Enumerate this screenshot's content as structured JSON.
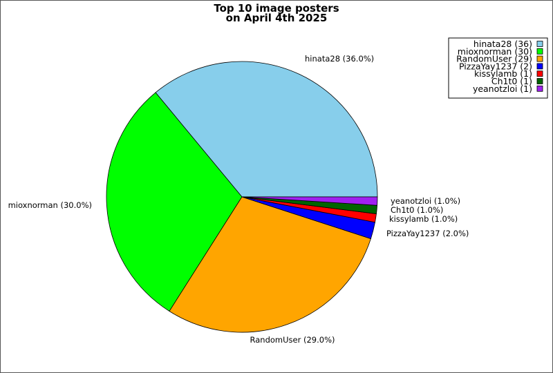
{
  "chart_data": {
    "type": "pie",
    "title": "Top 10 image posters",
    "subtitle": "on April 4th 2025",
    "slices": [
      {
        "name": "hinata28",
        "value": 36,
        "percent_label": "hinata28 (36.0%)",
        "legend_label": "hinata28 (36)",
        "color": "#87CEEB"
      },
      {
        "name": "mioxnorman",
        "value": 30,
        "percent_label": "mioxnorman (30.0%)",
        "legend_label": "mioxnorman (30)",
        "color": "#00FF00"
      },
      {
        "name": "RandomUser",
        "value": 29,
        "percent_label": "RandomUser (29.0%)",
        "legend_label": "RandomUser (29)",
        "color": "#FFA500"
      },
      {
        "name": "PizzaYay1237",
        "value": 2,
        "percent_label": "PizzaYay1237 (2.0%)",
        "legend_label": "PizzaYay1237 (2)",
        "color": "#0000FF"
      },
      {
        "name": "kissylamb",
        "value": 1,
        "percent_label": "kissylamb (1.0%)",
        "legend_label": "kissylamb (1)",
        "color": "#FF0000"
      },
      {
        "name": "Ch1t0",
        "value": 1,
        "percent_label": "Ch1t0 (1.0%)",
        "legend_label": "Ch1t0 (1)",
        "color": "#006400"
      },
      {
        "name": "yeanotzloi",
        "value": 1,
        "percent_label": "yeanotzloi (1.0%)",
        "legend_label": "yeanotzloi (1)",
        "color": "#A020F0"
      }
    ],
    "start_angle_deg": 0,
    "direction": "counterclockwise",
    "legend_position": "top-right"
  }
}
